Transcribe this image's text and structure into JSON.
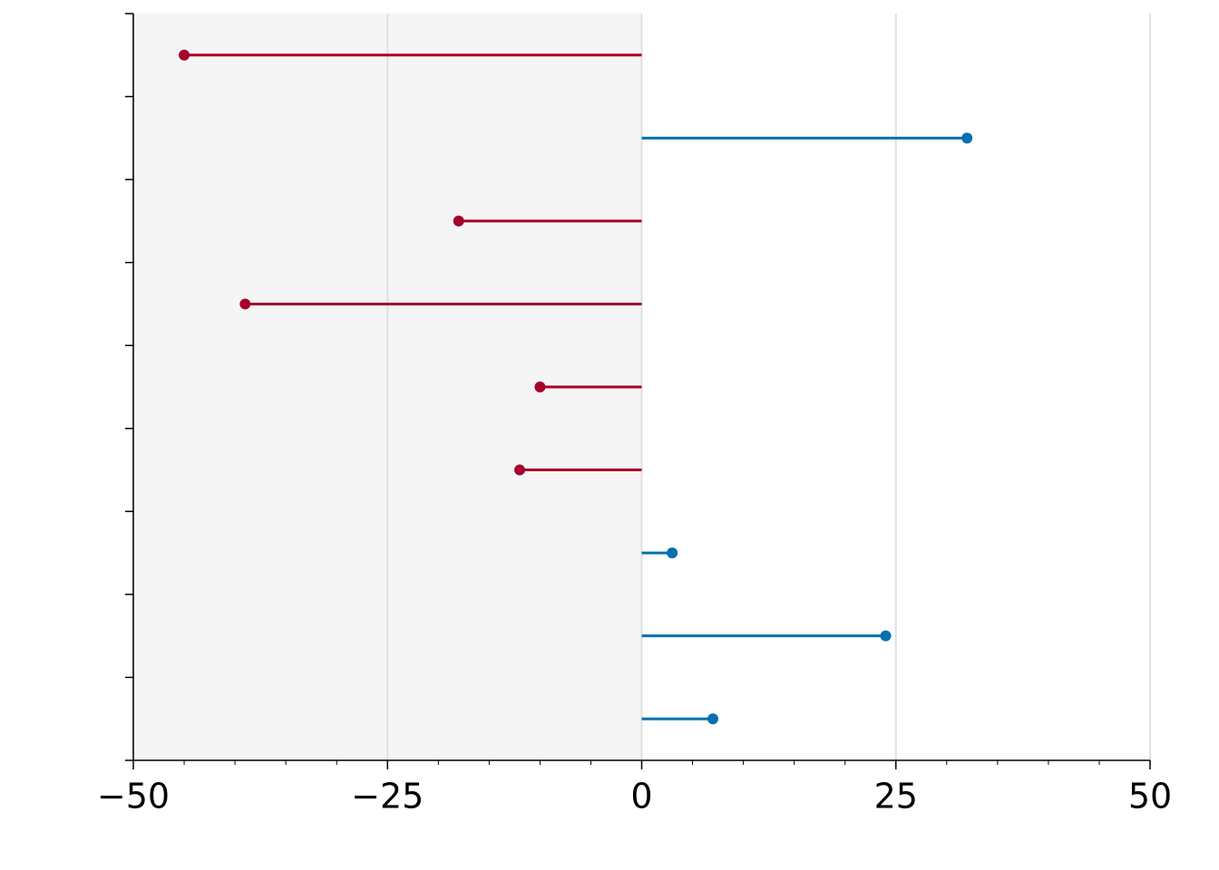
{
  "chart_data": {
    "type": "lollipop",
    "orientation": "horizontal",
    "categories": [
      null,
      null,
      null,
      null,
      null,
      null,
      null,
      null,
      null
    ],
    "values": [
      -45,
      32,
      -18,
      -39,
      -10,
      -12,
      3,
      24,
      7
    ],
    "colors": {
      "negative": "#a6002c",
      "positive": "#0570b0"
    },
    "shade_negative": true,
    "xlim": [
      -50,
      50
    ],
    "xticks": [
      {
        "value": -50,
        "label": "−50"
      },
      {
        "value": -25,
        "label": "−25"
      },
      0,
      25,
      50
    ],
    "xminorticks": [
      -45,
      -40,
      -35,
      -30,
      -20,
      -15,
      -10,
      -5,
      5,
      10,
      15,
      20,
      30,
      35,
      40,
      45
    ],
    "grid": true
  }
}
